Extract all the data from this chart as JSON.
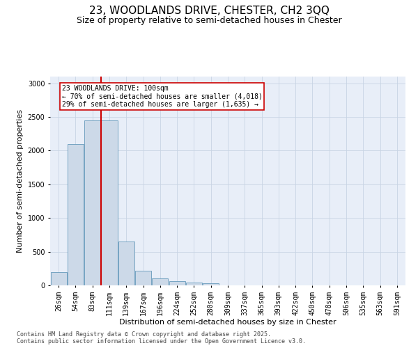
{
  "title_line1": "23, WOODLANDS DRIVE, CHESTER, CH2 3QQ",
  "title_line2": "Size of property relative to semi-detached houses in Chester",
  "xlabel": "Distribution of semi-detached houses by size in Chester",
  "ylabel": "Number of semi-detached properties",
  "categories": [
    "26sqm",
    "54sqm",
    "83sqm",
    "111sqm",
    "139sqm",
    "167sqm",
    "196sqm",
    "224sqm",
    "252sqm",
    "280sqm",
    "309sqm",
    "337sqm",
    "365sqm",
    "393sqm",
    "422sqm",
    "450sqm",
    "478sqm",
    "506sqm",
    "535sqm",
    "563sqm",
    "591sqm"
  ],
  "values": [
    200,
    2100,
    2450,
    2450,
    650,
    220,
    100,
    60,
    40,
    30,
    5,
    0,
    0,
    0,
    0,
    0,
    0,
    0,
    0,
    0,
    0
  ],
  "bar_color": "#ccd9e8",
  "bar_edge_color": "#6699bb",
  "vline_color": "#cc0000",
  "vline_pos": 2.5,
  "annotation_text_line1": "23 WOODLANDS DRIVE: 100sqm",
  "annotation_text_line2": "← 70% of semi-detached houses are smaller (4,018)",
  "annotation_text_line3": "29% of semi-detached houses are larger (1,635) →",
  "annotation_box_color": "#cc0000",
  "annotation_bg": "#ffffff",
  "ylim": [
    0,
    3100
  ],
  "yticks": [
    0,
    500,
    1000,
    1500,
    2000,
    2500,
    3000
  ],
  "grid_color": "#c8d4e4",
  "background_color": "#e8eef8",
  "footer_line1": "Contains HM Land Registry data © Crown copyright and database right 2025.",
  "footer_line2": "Contains public sector information licensed under the Open Government Licence v3.0.",
  "title_fontsize": 11,
  "subtitle_fontsize": 9,
  "axis_label_fontsize": 8,
  "tick_fontsize": 7,
  "annotation_fontsize": 7,
  "footer_fontsize": 6,
  "ylabel_fontsize": 8
}
